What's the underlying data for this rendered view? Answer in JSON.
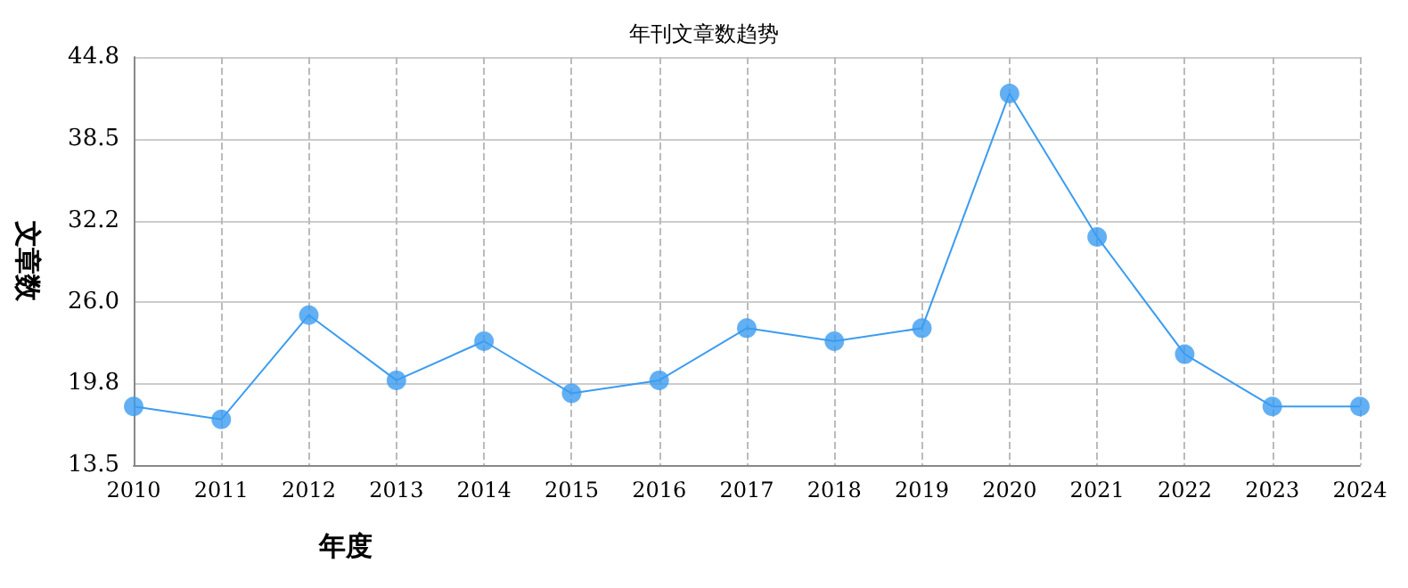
{
  "chart_data": {
    "type": "line",
    "title": "年刊文章数趋势",
    "xlabel": "年度",
    "ylabel": "文章数",
    "categories": [
      "2010",
      "2011",
      "2012",
      "2013",
      "2014",
      "2015",
      "2016",
      "2017",
      "2018",
      "2019",
      "2020",
      "2021",
      "2022",
      "2023",
      "2024"
    ],
    "series": [
      {
        "color": "#3b9cf0",
        "values": [
          18,
          17,
          25,
          20,
          23,
          19,
          20,
          24,
          23,
          24,
          42,
          31,
          22,
          18,
          18
        ]
      }
    ],
    "ylim": [
      13.5,
      44.8
    ],
    "yticks": [
      13.5,
      19.8,
      {
        "value": 26,
        "label": "26.0"
      },
      32.2,
      38.5,
      44.8
    ],
    "grid": true,
    "marker": "circle",
    "line_style": "solid"
  }
}
